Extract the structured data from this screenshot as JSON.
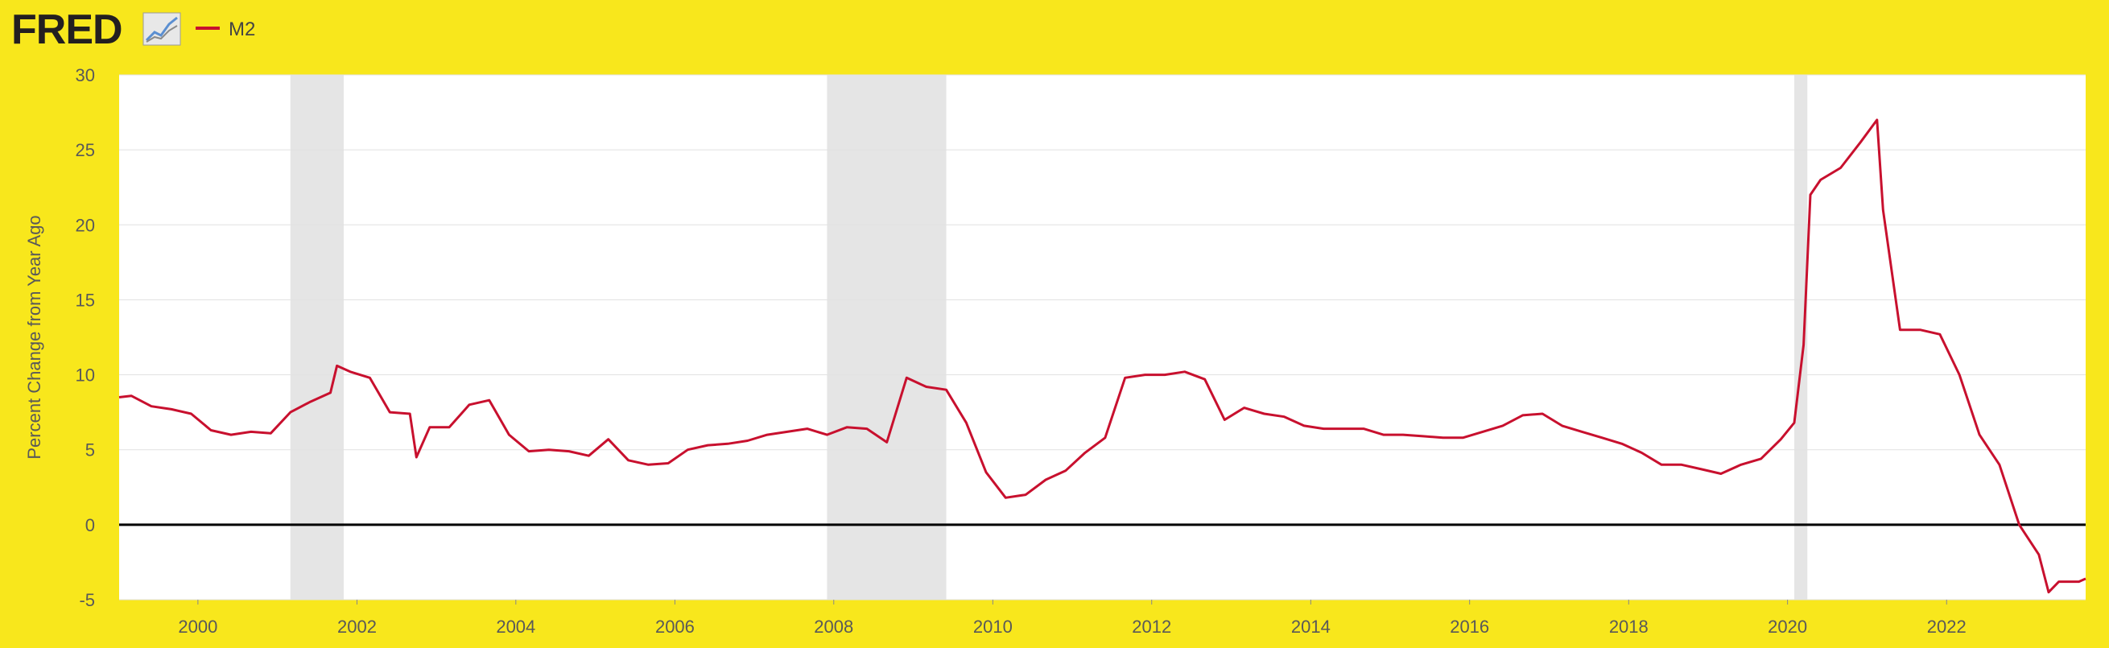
{
  "header": {
    "logo_text": "FRED",
    "logo_icon": "line-chart-icon",
    "legend_label": "M2"
  },
  "colors": {
    "background": "#f8e71c",
    "plot_background": "#ffffff",
    "series": "#c8102e",
    "recession_band": "#e5e5e5",
    "zero_line": "#000000",
    "gridline": "#e1e1e1",
    "text": "#595959",
    "logo": "#231f20"
  },
  "chart_data": {
    "type": "line",
    "title": "",
    "xlabel": "",
    "ylabel": "Percent Change from Year Ago",
    "xlim": [
      "1999-01-04",
      "2023-10-02"
    ],
    "ylim": [
      -5,
      30
    ],
    "y_ticks": [
      -5,
      0,
      5,
      10,
      15,
      20,
      25,
      30
    ],
    "x_ticks": [
      "2000",
      "2002",
      "2004",
      "2006",
      "2008",
      "2010",
      "2012",
      "2014",
      "2016",
      "2018",
      "2020",
      "2022"
    ],
    "grid": true,
    "legend_position": "top-left",
    "reference_line": 0,
    "recessions": [
      [
        "2001-03-01",
        "2001-11-01"
      ],
      [
        "2007-12-01",
        "2009-06-01"
      ],
      [
        "2020-02-01",
        "2020-04-01"
      ]
    ],
    "series": [
      {
        "name": "M2",
        "x": [
          "1999-01-04",
          "1999-03-01",
          "1999-06-01",
          "1999-09-01",
          "1999-12-01",
          "2000-03-01",
          "2000-06-01",
          "2000-09-01",
          "2000-12-01",
          "2001-03-01",
          "2001-06-01",
          "2001-09-01",
          "2001-10-01",
          "2001-12-01",
          "2002-03-01",
          "2002-06-01",
          "2002-09-01",
          "2002-10-01",
          "2002-12-01",
          "2003-03-01",
          "2003-06-01",
          "2003-09-01",
          "2003-12-01",
          "2004-03-01",
          "2004-06-01",
          "2004-09-01",
          "2004-12-01",
          "2005-03-01",
          "2005-06-01",
          "2005-09-01",
          "2005-12-01",
          "2006-03-01",
          "2006-06-01",
          "2006-09-01",
          "2006-12-01",
          "2007-03-01",
          "2007-06-01",
          "2007-09-01",
          "2007-12-01",
          "2008-03-01",
          "2008-06-01",
          "2008-09-01",
          "2008-12-01",
          "2009-03-01",
          "2009-06-01",
          "2009-09-01",
          "2009-12-01",
          "2010-03-01",
          "2010-06-01",
          "2010-09-01",
          "2010-12-01",
          "2011-03-01",
          "2011-06-01",
          "2011-09-01",
          "2011-12-01",
          "2012-03-01",
          "2012-06-01",
          "2012-09-01",
          "2012-12-01",
          "2013-03-01",
          "2013-06-01",
          "2013-09-01",
          "2013-12-01",
          "2014-03-01",
          "2014-06-01",
          "2014-09-01",
          "2014-12-01",
          "2015-03-01",
          "2015-06-01",
          "2015-09-01",
          "2015-12-01",
          "2016-03-01",
          "2016-06-01",
          "2016-09-01",
          "2016-12-01",
          "2017-03-01",
          "2017-06-01",
          "2017-09-01",
          "2017-12-01",
          "2018-03-01",
          "2018-06-01",
          "2018-09-01",
          "2018-12-01",
          "2019-03-01",
          "2019-06-01",
          "2019-09-01",
          "2019-12-01",
          "2020-02-01",
          "2020-03-15",
          "2020-04-15",
          "2020-06-01",
          "2020-09-01",
          "2020-12-01",
          "2021-02-15",
          "2021-03-15",
          "2021-06-01",
          "2021-09-01",
          "2021-12-01",
          "2022-03-01",
          "2022-06-01",
          "2022-09-01",
          "2022-12-01",
          "2023-03-01",
          "2023-04-15",
          "2023-06-01",
          "2023-09-01",
          "2023-10-02"
        ],
        "y": [
          8.5,
          8.6,
          7.9,
          7.7,
          7.4,
          6.3,
          6.0,
          6.2,
          6.1,
          7.5,
          8.2,
          8.8,
          10.6,
          10.2,
          9.8,
          7.5,
          7.4,
          4.5,
          6.5,
          6.5,
          8.0,
          8.3,
          6.0,
          4.9,
          5.0,
          4.9,
          4.6,
          5.7,
          4.3,
          4.0,
          4.1,
          5.0,
          5.3,
          5.4,
          5.6,
          6.0,
          6.2,
          6.4,
          6.0,
          6.5,
          6.4,
          5.5,
          9.8,
          9.2,
          9.0,
          6.8,
          3.5,
          1.8,
          2.0,
          3.0,
          3.6,
          4.8,
          5.8,
          9.8,
          10.0,
          10.0,
          10.2,
          9.7,
          7.0,
          7.8,
          7.4,
          7.2,
          6.6,
          6.4,
          6.4,
          6.4,
          6.0,
          6.0,
          5.9,
          5.8,
          5.8,
          6.2,
          6.6,
          7.3,
          7.4,
          6.6,
          6.2,
          5.8,
          5.4,
          4.8,
          4.0,
          4.0,
          3.7,
          3.4,
          4.0,
          4.4,
          5.7,
          6.8,
          12.0,
          22.0,
          23.0,
          23.8,
          25.5,
          27.0,
          21.0,
          13.0,
          13.0,
          12.7,
          10.0,
          6.0,
          4.0,
          0.0,
          -2.0,
          -4.5,
          -3.8,
          -3.8,
          -3.6
        ]
      }
    ]
  }
}
